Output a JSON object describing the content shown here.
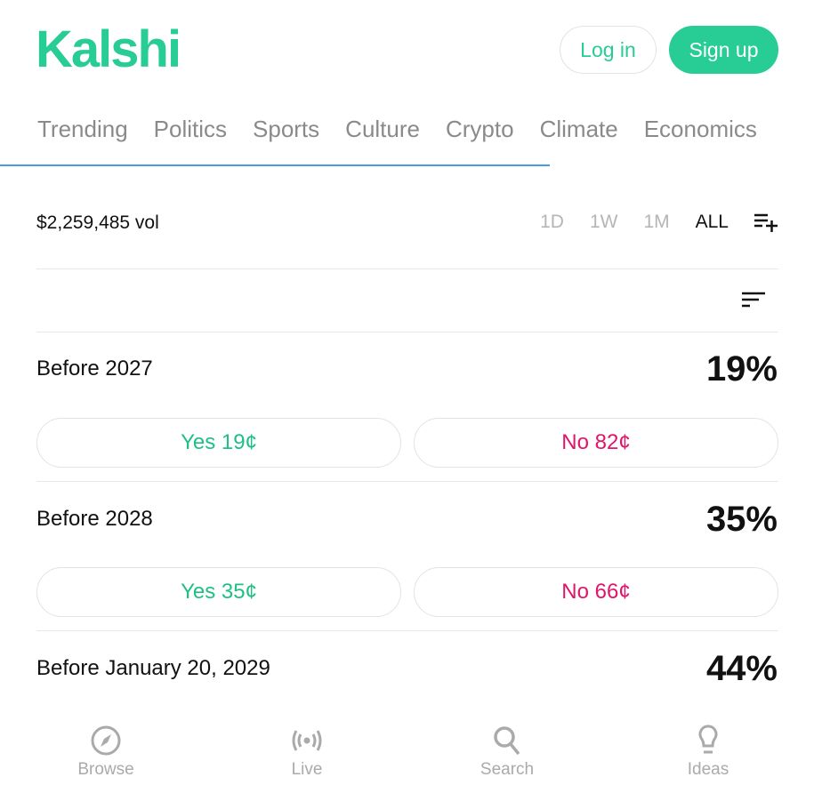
{
  "header": {
    "logo": "Kalshi",
    "login": "Log in",
    "signup": "Sign up",
    "brand_color": "#28cc95"
  },
  "tabs": [
    "Trending",
    "Politics",
    "Sports",
    "Culture",
    "Crypto",
    "Climate",
    "Economics"
  ],
  "market": {
    "volume": "$2,259,485 vol",
    "ranges": [
      "1D",
      "1W",
      "1M",
      "ALL"
    ],
    "selected_range": "ALL"
  },
  "outcomes": [
    {
      "title": "Before 2027",
      "pct": "19%",
      "yes": "Yes  19¢",
      "no": "No  82¢"
    },
    {
      "title": "Before 2028",
      "pct": "35%",
      "yes": "Yes  35¢",
      "no": "No  66¢"
    },
    {
      "title": "Before January 20, 2029",
      "pct": "44%"
    }
  ],
  "bottom_nav": [
    {
      "label": "Browse",
      "icon": "compass-icon"
    },
    {
      "label": "Live",
      "icon": "broadcast-icon"
    },
    {
      "label": "Search",
      "icon": "search-icon"
    },
    {
      "label": "Ideas",
      "icon": "lightbulb-icon"
    }
  ]
}
